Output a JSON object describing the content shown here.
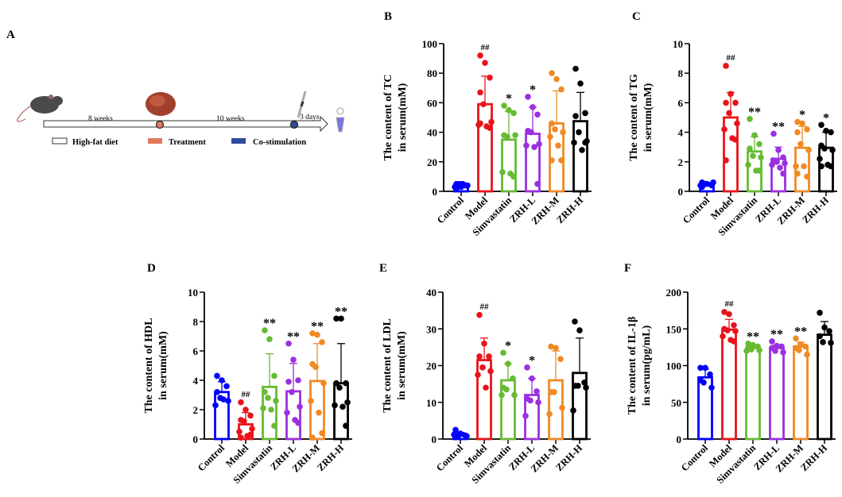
{
  "panel_a": {
    "letter": "A",
    "interval1": "8 weeks",
    "interval2": "10 weeks",
    "interval3": "3 days",
    "legend": [
      {
        "label": "High-fat diet",
        "color": "#ffffff"
      },
      {
        "label": "Treatment",
        "color": "#e07a5f"
      },
      {
        "label": "Co-stimulation",
        "color": "#2f4a9a"
      }
    ]
  },
  "colors": [
    "#0000ff",
    "#e8131a",
    "#66bb33",
    "#9b30e0",
    "#ef8a25",
    "#000000"
  ],
  "chart_data": [
    {
      "letter": "B",
      "type": "bar",
      "categories": [
        "Control",
        "Model",
        "Simvastatin",
        "ZRH-L",
        "ZRH-M",
        "ZRH-H"
      ],
      "ylabel": [
        "The content of TC",
        "in serum(mM)"
      ],
      "ylim": [
        0,
        100
      ],
      "yticks": [
        0,
        20,
        40,
        60,
        80,
        100
      ],
      "means": [
        4,
        59,
        35,
        39,
        46,
        47.5
      ],
      "sd_upper": [
        5,
        78,
        54,
        57,
        68,
        67
      ],
      "significance": [
        "",
        "##",
        "*",
        "*",
        "",
        ""
      ],
      "points": [
        [
          5,
          3,
          4,
          2,
          5,
          4,
          3,
          5,
          4
        ],
        [
          92,
          87,
          77,
          67,
          59,
          47,
          45,
          44,
          43,
          46
        ],
        [
          58,
          55,
          53,
          38,
          37,
          38,
          13,
          12,
          10
        ],
        [
          64,
          57,
          52,
          41,
          40,
          32,
          31,
          30,
          5
        ],
        [
          80,
          76,
          69,
          46,
          42,
          40,
          37,
          31,
          21,
          21
        ],
        [
          83,
          73,
          53,
          51,
          40,
          34,
          33,
          28,
          33
        ]
      ]
    },
    {
      "letter": "C",
      "type": "bar",
      "categories": [
        "Control",
        "Model",
        "Simvastatin",
        "ZRH-L",
        "ZRH-M",
        "ZRH-H"
      ],
      "ylabel": [
        "The content of TG",
        "in serum(mM)"
      ],
      "ylim": [
        0,
        10
      ],
      "yticks": [
        0,
        2,
        4,
        6,
        8,
        10
      ],
      "means": [
        0.45,
        5.0,
        2.7,
        2.2,
        2.95,
        2.95
      ],
      "sd_upper": [
        0.6,
        6.7,
        3.7,
        3.0,
        4.4,
        4.0
      ],
      "significance": [
        "",
        "##",
        "**",
        "**",
        "*",
        "*"
      ],
      "points": [
        [
          0.6,
          0.5,
          0.4,
          0.3,
          0.5,
          0.6,
          0.4
        ],
        [
          8.5,
          6.6,
          6.0,
          6.0,
          5.3,
          4.6,
          4.2,
          3.6,
          3.5,
          2.1
        ],
        [
          4.9,
          3.8,
          3.2,
          2.9,
          2.4,
          2.3,
          1.8,
          1.4,
          1.4
        ],
        [
          3.9,
          2.8,
          2.3,
          2.1,
          2.0,
          1.9,
          1.8,
          1.6,
          1.2
        ],
        [
          4.7,
          4.6,
          4.2,
          4.0,
          3.2,
          2.8,
          1.7,
          1.7,
          1.0,
          1.2
        ],
        [
          4.5,
          4.1,
          4.0,
          3.1,
          2.9,
          2.8,
          2.2,
          1.8,
          1.7,
          1.7
        ]
      ]
    },
    {
      "letter": "D",
      "type": "bar",
      "categories": [
        "Control",
        "Model",
        "Simvastatin",
        "ZRH-L",
        "ZRH-M",
        "ZRH-H"
      ],
      "ylabel": [
        "The content of HDL",
        "in serum(mM)"
      ],
      "ylim": [
        0,
        10
      ],
      "yticks": [
        0,
        2,
        4,
        6,
        8,
        10
      ],
      "means": [
        3.2,
        1.0,
        3.55,
        3.25,
        3.95,
        3.8
      ],
      "sd_upper": [
        3.9,
        1.8,
        5.8,
        5.15,
        6.5,
        6.5
      ],
      "significance": [
        "",
        "##",
        "**",
        "**",
        "**",
        "**"
      ],
      "points": [
        [
          4.3,
          4.0,
          3.6,
          3.2,
          2.8,
          2.6,
          2.3,
          2.7
        ],
        [
          2.5,
          2.0,
          1.6,
          1.3,
          1.2,
          0.7,
          0.5,
          0.2,
          0.3,
          0.1
        ],
        [
          7.4,
          6.8,
          4.3,
          3.2,
          2.8,
          2.6,
          2.1,
          2.0,
          0.9
        ],
        [
          6.5,
          5.4,
          4.0,
          3.9,
          3.2,
          2.2,
          1.8,
          1.3,
          1.1
        ],
        [
          7.2,
          7.1,
          6.6,
          5.1,
          4.9,
          3.8,
          2.6,
          1.8,
          0.4,
          0.1
        ],
        [
          8.2,
          8.2,
          3.8,
          3.8,
          3.5,
          2.5,
          2.3,
          2.2,
          0.9
        ]
      ]
    },
    {
      "letter": "E",
      "type": "bar",
      "categories": [
        "Control",
        "Model",
        "Simvastatin",
        "ZRH-L",
        "ZRH-M",
        "ZRH-H"
      ],
      "ylabel": [
        "The content of LDL",
        "in serum(mM)"
      ],
      "ylim": [
        0,
        40
      ],
      "yticks": [
        0,
        10,
        20,
        30,
        40
      ],
      "means": [
        1,
        21.5,
        16,
        12,
        16,
        18
      ],
      "sd_upper": [
        1.8,
        27.5,
        20.5,
        16.5,
        24,
        27.5
      ],
      "significance": [
        "",
        "##",
        "*",
        "*",
        "",
        ""
      ],
      "points": [
        [
          2.5,
          1.5,
          1,
          0.5,
          1,
          0.8,
          1.2
        ],
        [
          33.8,
          26,
          22.5,
          22.5,
          19.5,
          18.5,
          17.5,
          14
        ],
        [
          23.5,
          20.5,
          16.5,
          14,
          13.5,
          12,
          12
        ],
        [
          19.5,
          16.5,
          13,
          11,
          10.5,
          10,
          6.3
        ],
        [
          25.2,
          24.8,
          21.8,
          12.8,
          12.8,
          8.5,
          6.8
        ],
        [
          32,
          29.6,
          15.4,
          14.5,
          14.5,
          14,
          7.8
        ]
      ]
    },
    {
      "letter": "F",
      "type": "bar",
      "categories": [
        "Control",
        "Model",
        "Simvastatin",
        "ZRH-L",
        "ZRH-M",
        "ZRH-H"
      ],
      "ylabel": [
        "The content of IL-1β",
        "in serum(pg/mL)"
      ],
      "ylim": [
        0,
        200
      ],
      "yticks": [
        0,
        50,
        100,
        150,
        200
      ],
      "means": [
        84,
        149,
        124,
        124,
        126,
        142
      ],
      "sd_upper": [
        95,
        163,
        128,
        128,
        132,
        160
      ],
      "significance": [
        "",
        "##",
        "**",
        "**",
        "**",
        ""
      ],
      "points": [
        [
          97,
          97,
          88,
          80,
          77,
          70
        ],
        [
          173,
          170,
          155,
          150,
          148,
          147,
          140,
          135,
          133
        ],
        [
          130,
          128,
          126,
          124,
          122,
          121,
          120
        ],
        [
          133,
          127,
          126,
          124,
          120,
          118
        ],
        [
          137,
          129,
          126,
          124,
          121,
          115
        ],
        [
          172,
          152,
          147,
          140,
          132,
          131
        ]
      ]
    }
  ]
}
